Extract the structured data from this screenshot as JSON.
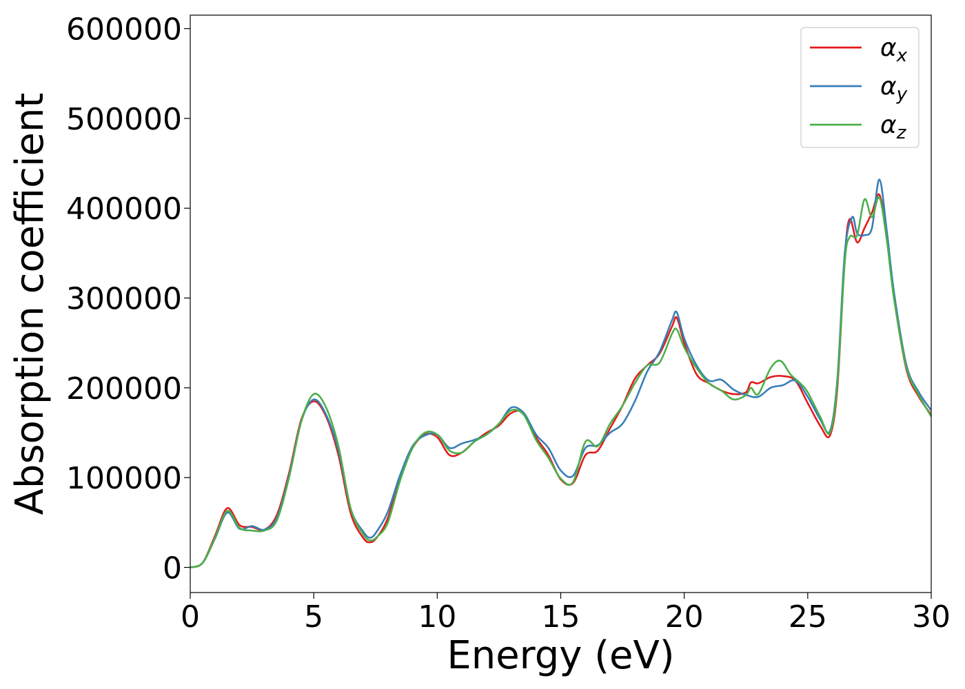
{
  "chart_data": {
    "type": "line",
    "title": "",
    "xlabel": "Energy (eV)",
    "ylabel": "Absorption coefficient",
    "xlim": [
      0,
      30
    ],
    "ylim": [
      -28000,
      615000
    ],
    "x_ticks": [
      0,
      5,
      10,
      15,
      20,
      25,
      30
    ],
    "x_tick_labels": [
      "0",
      "5",
      "10",
      "15",
      "20",
      "25",
      "30"
    ],
    "y_ticks": [
      0,
      100000,
      200000,
      300000,
      400000,
      500000,
      600000
    ],
    "y_tick_labels": [
      "0",
      "100000",
      "200000",
      "300000",
      "400000",
      "500000",
      "600000"
    ],
    "grid": false,
    "legend_position": "top-right",
    "series": [
      {
        "name": "α_x",
        "name_main": "α",
        "name_sub": "x",
        "color": "#e41a1c",
        "points": [
          [
            0,
            0
          ],
          [
            0.5,
            5000
          ],
          [
            1,
            35000
          ],
          [
            1.5,
            66000
          ],
          [
            2,
            47000
          ],
          [
            2.5,
            45000
          ],
          [
            3,
            42000
          ],
          [
            3.5,
            58000
          ],
          [
            4,
            105000
          ],
          [
            4.5,
            165000
          ],
          [
            5,
            185000
          ],
          [
            5.5,
            168000
          ],
          [
            6,
            125000
          ],
          [
            6.5,
            60000
          ],
          [
            7,
            33000
          ],
          [
            7.3,
            28000
          ],
          [
            7.6,
            35000
          ],
          [
            8,
            55000
          ],
          [
            8.5,
            100000
          ],
          [
            9,
            133000
          ],
          [
            9.5,
            148000
          ],
          [
            10,
            145000
          ],
          [
            10.5,
            125000
          ],
          [
            11,
            128000
          ],
          [
            11.5,
            140000
          ],
          [
            12,
            150000
          ],
          [
            12.5,
            158000
          ],
          [
            13,
            172000
          ],
          [
            13.5,
            172000
          ],
          [
            14,
            145000
          ],
          [
            14.5,
            125000
          ],
          [
            15,
            98000
          ],
          [
            15.5,
            94000
          ],
          [
            16,
            125000
          ],
          [
            16.5,
            130000
          ],
          [
            17,
            155000
          ],
          [
            17.5,
            180000
          ],
          [
            18,
            210000
          ],
          [
            18.5,
            225000
          ],
          [
            19,
            238000
          ],
          [
            19.5,
            268000
          ],
          [
            19.7,
            278000
          ],
          [
            20,
            250000
          ],
          [
            20.5,
            215000
          ],
          [
            21,
            205000
          ],
          [
            21.5,
            197000
          ],
          [
            22,
            193000
          ],
          [
            22.5,
            195000
          ],
          [
            22.7,
            206000
          ],
          [
            23,
            205000
          ],
          [
            23.5,
            212000
          ],
          [
            24,
            213000
          ],
          [
            24.5,
            208000
          ],
          [
            25,
            183000
          ],
          [
            25.5,
            158000
          ],
          [
            25.9,
            147000
          ],
          [
            26.2,
            200000
          ],
          [
            26.5,
            345000
          ],
          [
            26.7,
            388000
          ],
          [
            27,
            362000
          ],
          [
            27.3,
            378000
          ],
          [
            27.6,
            395000
          ],
          [
            27.9,
            415000
          ],
          [
            28.2,
            370000
          ],
          [
            28.5,
            300000
          ],
          [
            29,
            220000
          ],
          [
            29.5,
            190000
          ],
          [
            30,
            170000
          ]
        ]
      },
      {
        "name": "α_y",
        "name_main": "α",
        "name_sub": "y",
        "color": "#377eb8",
        "points": [
          [
            0,
            0
          ],
          [
            0.5,
            5000
          ],
          [
            1,
            32000
          ],
          [
            1.5,
            61000
          ],
          [
            2,
            43000
          ],
          [
            2.5,
            46000
          ],
          [
            3,
            42000
          ],
          [
            3.5,
            55000
          ],
          [
            4,
            102000
          ],
          [
            4.5,
            163000
          ],
          [
            5,
            187000
          ],
          [
            5.5,
            170000
          ],
          [
            6,
            130000
          ],
          [
            6.5,
            65000
          ],
          [
            7,
            40000
          ],
          [
            7.3,
            33000
          ],
          [
            7.6,
            42000
          ],
          [
            8,
            62000
          ],
          [
            8.5,
            103000
          ],
          [
            9,
            135000
          ],
          [
            9.5,
            147000
          ],
          [
            10,
            148000
          ],
          [
            10.5,
            133000
          ],
          [
            11,
            138000
          ],
          [
            11.5,
            142000
          ],
          [
            12,
            148000
          ],
          [
            12.5,
            160000
          ],
          [
            13,
            178000
          ],
          [
            13.5,
            172000
          ],
          [
            14,
            148000
          ],
          [
            14.5,
            133000
          ],
          [
            15,
            108000
          ],
          [
            15.5,
            102000
          ],
          [
            16,
            133000
          ],
          [
            16.5,
            136000
          ],
          [
            17,
            150000
          ],
          [
            17.5,
            160000
          ],
          [
            18,
            185000
          ],
          [
            18.5,
            218000
          ],
          [
            19,
            240000
          ],
          [
            19.5,
            275000
          ],
          [
            19.7,
            284000
          ],
          [
            20,
            255000
          ],
          [
            20.5,
            225000
          ],
          [
            21,
            208000
          ],
          [
            21.5,
            209000
          ],
          [
            22,
            198000
          ],
          [
            22.5,
            192000
          ],
          [
            23,
            190000
          ],
          [
            23.5,
            200000
          ],
          [
            24,
            203000
          ],
          [
            24.5,
            208000
          ],
          [
            25,
            190000
          ],
          [
            25.5,
            165000
          ],
          [
            25.9,
            152000
          ],
          [
            26.2,
            210000
          ],
          [
            26.5,
            350000
          ],
          [
            26.8,
            390000
          ],
          [
            27,
            372000
          ],
          [
            27.3,
            370000
          ],
          [
            27.6,
            378000
          ],
          [
            27.9,
            432000
          ],
          [
            28.2,
            375000
          ],
          [
            28.5,
            305000
          ],
          [
            29,
            225000
          ],
          [
            29.5,
            195000
          ],
          [
            30,
            175000
          ]
        ]
      },
      {
        "name": "α_z",
        "name_main": "α",
        "name_sub": "z",
        "color": "#4daf4a",
        "points": [
          [
            0,
            0
          ],
          [
            0.5,
            5000
          ],
          [
            1,
            33000
          ],
          [
            1.5,
            63000
          ],
          [
            2,
            44000
          ],
          [
            2.5,
            41000
          ],
          [
            3,
            41000
          ],
          [
            3.5,
            52000
          ],
          [
            4,
            100000
          ],
          [
            4.5,
            163000
          ],
          [
            5,
            193000
          ],
          [
            5.5,
            178000
          ],
          [
            6,
            135000
          ],
          [
            6.5,
            65000
          ],
          [
            7,
            37000
          ],
          [
            7.3,
            30000
          ],
          [
            7.6,
            35000
          ],
          [
            8,
            50000
          ],
          [
            8.5,
            97000
          ],
          [
            9,
            133000
          ],
          [
            9.5,
            150000
          ],
          [
            10,
            148000
          ],
          [
            10.5,
            130000
          ],
          [
            11,
            128000
          ],
          [
            11.5,
            140000
          ],
          [
            12,
            148000
          ],
          [
            12.5,
            160000
          ],
          [
            13,
            175000
          ],
          [
            13.5,
            170000
          ],
          [
            14,
            142000
          ],
          [
            14.5,
            122000
          ],
          [
            15,
            99000
          ],
          [
            15.5,
            95000
          ],
          [
            16,
            140000
          ],
          [
            16.5,
            135000
          ],
          [
            17,
            160000
          ],
          [
            17.5,
            180000
          ],
          [
            18,
            205000
          ],
          [
            18.5,
            225000
          ],
          [
            19,
            228000
          ],
          [
            19.5,
            260000
          ],
          [
            19.7,
            265000
          ],
          [
            20,
            245000
          ],
          [
            20.5,
            222000
          ],
          [
            21,
            205000
          ],
          [
            21.5,
            197000
          ],
          [
            22,
            187000
          ],
          [
            22.5,
            192000
          ],
          [
            22.7,
            200000
          ],
          [
            23,
            193000
          ],
          [
            23.5,
            222000
          ],
          [
            23.9,
            230000
          ],
          [
            24.3,
            215000
          ],
          [
            24.7,
            205000
          ],
          [
            25,
            195000
          ],
          [
            25.5,
            168000
          ],
          [
            25.9,
            150000
          ],
          [
            26.2,
            205000
          ],
          [
            26.5,
            340000
          ],
          [
            26.7,
            368000
          ],
          [
            27,
            370000
          ],
          [
            27.3,
            410000
          ],
          [
            27.6,
            390000
          ],
          [
            27.9,
            412000
          ],
          [
            28.2,
            365000
          ],
          [
            28.5,
            298000
          ],
          [
            29,
            222000
          ],
          [
            29.5,
            192000
          ],
          [
            30,
            168000
          ]
        ]
      }
    ]
  }
}
